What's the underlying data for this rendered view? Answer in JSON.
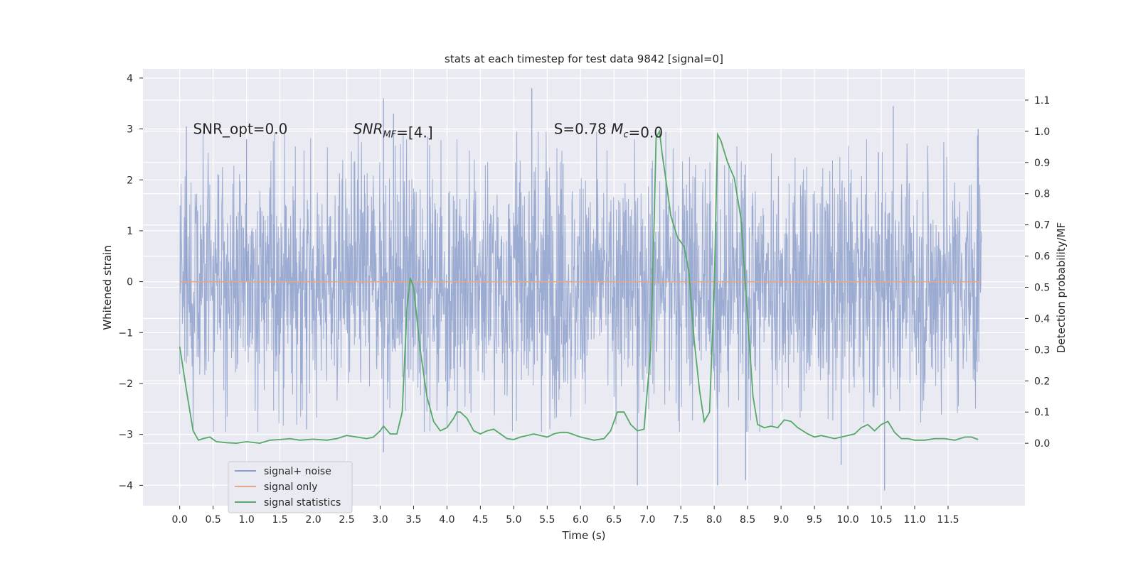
{
  "chart_data": {
    "type": "line",
    "title": "stats at each timestep for test data 9842 [signal=0]",
    "xlabel": "Time (s)",
    "ylabel_left": "Whitened strain",
    "ylabel_right": "Detection probability/MF",
    "xlim": [
      -0.55,
      12.65
    ],
    "ylim_left": [
      -4.4,
      4.18
    ],
    "ylim_right": [
      -0.2,
      1.2
    ],
    "x_ticks": [
      0.0,
      0.5,
      1.0,
      1.5,
      2.0,
      2.5,
      3.0,
      3.5,
      4.0,
      4.5,
      5.0,
      5.5,
      6.0,
      6.5,
      7.0,
      7.5,
      8.0,
      8.5,
      9.0,
      9.5,
      10.0,
      10.5,
      11.0,
      11.5
    ],
    "x_tick_labels": [
      "0.0",
      "0.5",
      "1.0",
      "1.5",
      "2.0",
      "2.5",
      "3.0",
      "3.5",
      "4.0",
      "4.5",
      "5.0",
      "5.5",
      "6.0",
      "6.5",
      "7.0",
      "7.5",
      "8.0",
      "8.5",
      "9.0",
      "9.5",
      "10.0",
      "10.5",
      "11.0",
      "11.5"
    ],
    "y_left_ticks": [
      4,
      3,
      2,
      1,
      0,
      -1,
      -2,
      -3,
      -4
    ],
    "y_left_tick_labels": [
      "4",
      "3",
      "2",
      "1",
      "0",
      "−1",
      "−2",
      "−3",
      "−4"
    ],
    "y_right_ticks": [
      1.1,
      1.0,
      0.9,
      0.8,
      0.7,
      0.6,
      0.5,
      0.4,
      0.3,
      0.2,
      0.1,
      0.0
    ],
    "y_right_tick_labels": [
      "1.1",
      "1.0",
      "0.9",
      "0.8",
      "0.7",
      "0.6",
      "0.5",
      "0.4",
      "0.3",
      "0.2",
      "0.1",
      "0.0"
    ],
    "grid": true,
    "legend_position": "lower-left",
    "annotations": [
      {
        "text": "SNR_opt=0.0",
        "x": 0.2,
        "y": 3.0
      },
      {
        "text": "SNR_MF=[4.]",
        "x": 2.6,
        "y": 3.0
      },
      {
        "text": "S=0.78   M_c=0.0",
        "x": 5.6,
        "y": 3.0
      }
    ],
    "series": [
      {
        "name": "signal+ noise",
        "axis": "left",
        "color": "#8da0cb",
        "style": "noise",
        "x_range": [
          0.0,
          12.0
        ],
        "typical_amplitude": 1.7,
        "peaks": [
          {
            "x": 0.1,
            "y": 3.05
          },
          {
            "x": 1.0,
            "y": 2.8
          },
          {
            "x": 1.9,
            "y": -2.9
          },
          {
            "x": 3.05,
            "y": 3.6
          },
          {
            "x": 3.05,
            "y": -3.35
          },
          {
            "x": 3.2,
            "y": 3.3
          },
          {
            "x": 5.27,
            "y": 3.8
          },
          {
            "x": 6.85,
            "y": -4.0
          },
          {
            "x": 8.05,
            "y": -4.0
          },
          {
            "x": 8.47,
            "y": -3.9
          },
          {
            "x": 9.9,
            "y": -3.6
          },
          {
            "x": 10.55,
            "y": -4.1
          },
          {
            "x": 10.68,
            "y": 3.45
          },
          {
            "x": 11.95,
            "y": 3.0
          }
        ]
      },
      {
        "name": "signal only",
        "axis": "left",
        "color": "#e5a98a",
        "x": [
          0.0,
          12.0
        ],
        "values": [
          0.0,
          0.0
        ]
      },
      {
        "name": "signal statistics",
        "axis": "right",
        "color": "#55a868",
        "x": [
          0.0,
          0.1,
          0.2,
          0.28,
          0.35,
          0.45,
          0.55,
          0.7,
          0.85,
          1.0,
          1.2,
          1.35,
          1.5,
          1.65,
          1.8,
          2.0,
          2.2,
          2.35,
          2.5,
          2.65,
          2.8,
          2.9,
          3.0,
          3.05,
          3.15,
          3.25,
          3.33,
          3.4,
          3.45,
          3.5,
          3.6,
          3.7,
          3.8,
          3.9,
          4.0,
          4.1,
          4.15,
          4.2,
          4.3,
          4.4,
          4.5,
          4.6,
          4.7,
          4.8,
          4.9,
          5.0,
          5.1,
          5.2,
          5.3,
          5.4,
          5.5,
          5.6,
          5.7,
          5.8,
          6.0,
          6.1,
          6.2,
          6.35,
          6.45,
          6.55,
          6.65,
          6.75,
          6.85,
          6.95,
          7.05,
          7.1,
          7.13,
          7.18,
          7.22,
          7.28,
          7.35,
          7.45,
          7.55,
          7.62,
          7.7,
          7.78,
          7.85,
          7.93,
          8.0,
          8.05,
          8.1,
          8.2,
          8.3,
          8.4,
          8.5,
          8.58,
          8.65,
          8.75,
          8.85,
          8.95,
          9.05,
          9.15,
          9.25,
          9.4,
          9.5,
          9.6,
          9.7,
          9.8,
          9.9,
          10.0,
          10.1,
          10.2,
          10.3,
          10.4,
          10.5,
          10.6,
          10.7,
          10.8,
          10.9,
          11.0,
          11.15,
          11.3,
          11.45,
          11.6,
          11.75,
          11.85,
          11.95
        ],
        "values": [
          0.31,
          0.17,
          0.04,
          0.01,
          0.015,
          0.02,
          0.005,
          0.002,
          0.0,
          0.005,
          0.0,
          0.01,
          0.012,
          0.015,
          0.01,
          0.013,
          0.01,
          0.015,
          0.025,
          0.02,
          0.015,
          0.02,
          0.04,
          0.055,
          0.03,
          0.03,
          0.1,
          0.43,
          0.53,
          0.5,
          0.3,
          0.15,
          0.07,
          0.04,
          0.05,
          0.08,
          0.1,
          0.1,
          0.08,
          0.04,
          0.03,
          0.04,
          0.045,
          0.03,
          0.015,
          0.012,
          0.02,
          0.025,
          0.03,
          0.025,
          0.02,
          0.03,
          0.035,
          0.035,
          0.02,
          0.015,
          0.01,
          0.015,
          0.04,
          0.1,
          0.1,
          0.06,
          0.04,
          0.045,
          0.3,
          0.7,
          0.98,
          1.0,
          0.93,
          0.84,
          0.73,
          0.66,
          0.63,
          0.55,
          0.33,
          0.17,
          0.07,
          0.1,
          0.5,
          0.99,
          0.97,
          0.9,
          0.85,
          0.72,
          0.4,
          0.15,
          0.06,
          0.05,
          0.055,
          0.05,
          0.075,
          0.07,
          0.05,
          0.03,
          0.02,
          0.025,
          0.02,
          0.015,
          0.02,
          0.025,
          0.03,
          0.05,
          0.06,
          0.04,
          0.06,
          0.07,
          0.035,
          0.015,
          0.015,
          0.01,
          0.01,
          0.015,
          0.015,
          0.01,
          0.02,
          0.02,
          0.012
        ]
      }
    ]
  }
}
